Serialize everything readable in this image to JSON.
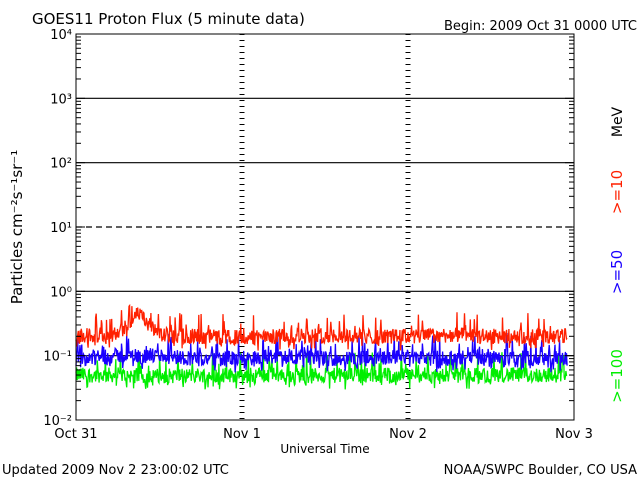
{
  "header": {
    "title": "GOES11 Proton Flux (5 minute data)",
    "begin": "Begin: 2009 Oct 31 0000 UTC"
  },
  "footer": {
    "updated": "Updated 2009 Nov  2 23:00:02 UTC",
    "source": "NOAA/SWPC Boulder, CO USA"
  },
  "colors": {
    "ge10": "#ff2000",
    "ge50": "#1a00ff",
    "ge100": "#00ee00",
    "axis": "#000000"
  },
  "chart_data": {
    "type": "line",
    "title": "GOES11 Proton Flux (5 minute data)",
    "xlabel": "Universal Time",
    "ylabel": "Particles cm⁻²s⁻¹sr⁻¹",
    "y_scale": "log",
    "ylim": [
      0.01,
      10000
    ],
    "xlim": [
      "2009-10-31T00:00",
      "2009-11-03T00:00"
    ],
    "x_ticks": [
      "Oct 31",
      "Nov 1",
      "Nov 2",
      "Nov 3"
    ],
    "y_ticks": [
      "10⁻²",
      "10⁻¹",
      "10⁰",
      "10¹",
      "10²",
      "10³",
      "10⁴"
    ],
    "legend_unit": "MeV",
    "legend_placement": "right",
    "grid": "horizontal lines at decades (10¹ dashed), vertical dashed day separators",
    "series": [
      {
        "name": ">=10",
        "color": "#ff2000",
        "x": [
          "2009-10-31T00:00",
          "2009-10-31T06:00",
          "2009-10-31T09:00",
          "2009-10-31T12:00",
          "2009-10-31T18:00",
          "2009-11-01T00:00",
          "2009-11-01T06:00",
          "2009-11-01T12:00",
          "2009-11-01T18:00",
          "2009-11-02T00:00",
          "2009-11-02T06:00",
          "2009-11-02T12:00",
          "2009-11-02T18:00",
          "2009-11-02T23:00"
        ],
        "y": [
          0.2,
          0.22,
          0.45,
          0.21,
          0.2,
          0.19,
          0.2,
          0.21,
          0.2,
          0.2,
          0.21,
          0.2,
          0.2,
          0.2
        ]
      },
      {
        "name": ">=50",
        "color": "#1a00ff",
        "x": [
          "2009-10-31T00:00",
          "2009-10-31T06:00",
          "2009-10-31T12:00",
          "2009-10-31T18:00",
          "2009-11-01T00:00",
          "2009-11-01T06:00",
          "2009-11-01T12:00",
          "2009-11-01T18:00",
          "2009-11-02T00:00",
          "2009-11-02T06:00",
          "2009-11-02T12:00",
          "2009-11-02T18:00",
          "2009-11-02T23:00"
        ],
        "y": [
          0.09,
          0.1,
          0.1,
          0.09,
          0.09,
          0.1,
          0.09,
          0.09,
          0.1,
          0.09,
          0.1,
          0.09,
          0.09
        ]
      },
      {
        "name": ">=100",
        "color": "#00ee00",
        "x": [
          "2009-10-31T00:00",
          "2009-10-31T06:00",
          "2009-10-31T12:00",
          "2009-10-31T18:00",
          "2009-11-01T00:00",
          "2009-11-01T06:00",
          "2009-11-01T12:00",
          "2009-11-01T18:00",
          "2009-11-02T00:00",
          "2009-11-02T06:00",
          "2009-11-02T12:00",
          "2009-11-02T18:00",
          "2009-11-02T23:00"
        ],
        "y": [
          0.05,
          0.05,
          0.048,
          0.05,
          0.05,
          0.05,
          0.049,
          0.05,
          0.05,
          0.05,
          0.05,
          0.05,
          0.05
        ]
      }
    ]
  }
}
